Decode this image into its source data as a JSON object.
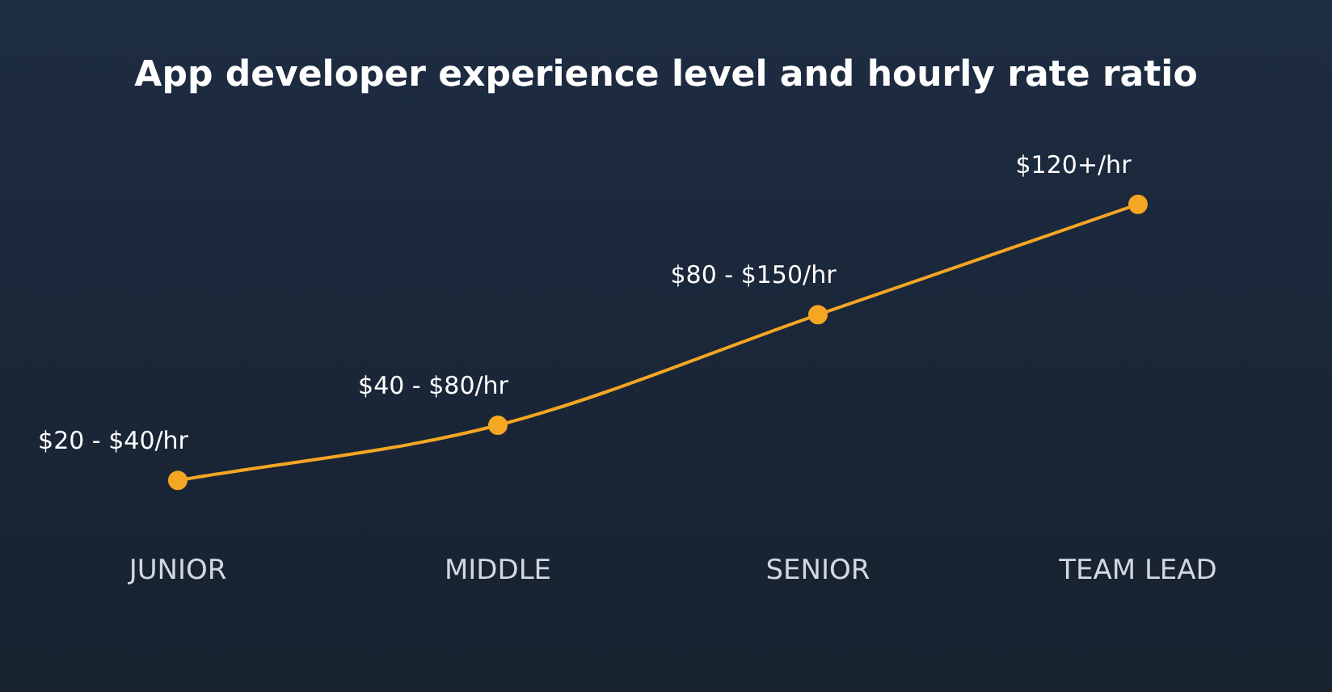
{
  "chart_data": {
    "type": "line",
    "title": "App developer experience level and hourly rate ratio",
    "categories": [
      "JUNIOR",
      "MIDDLE",
      "SENIOR",
      "TEAM LEAD"
    ],
    "tick_labels": "x",
    "marker": "circle",
    "line_style": "solid",
    "color": "#f5a623",
    "values": [
      20,
      40,
      80,
      120
    ],
    "value_labels": [
      "$20 - $40/hr",
      "$40 - $80/hr",
      "$80 - $150/hr",
      "$120+/hr"
    ]
  }
}
